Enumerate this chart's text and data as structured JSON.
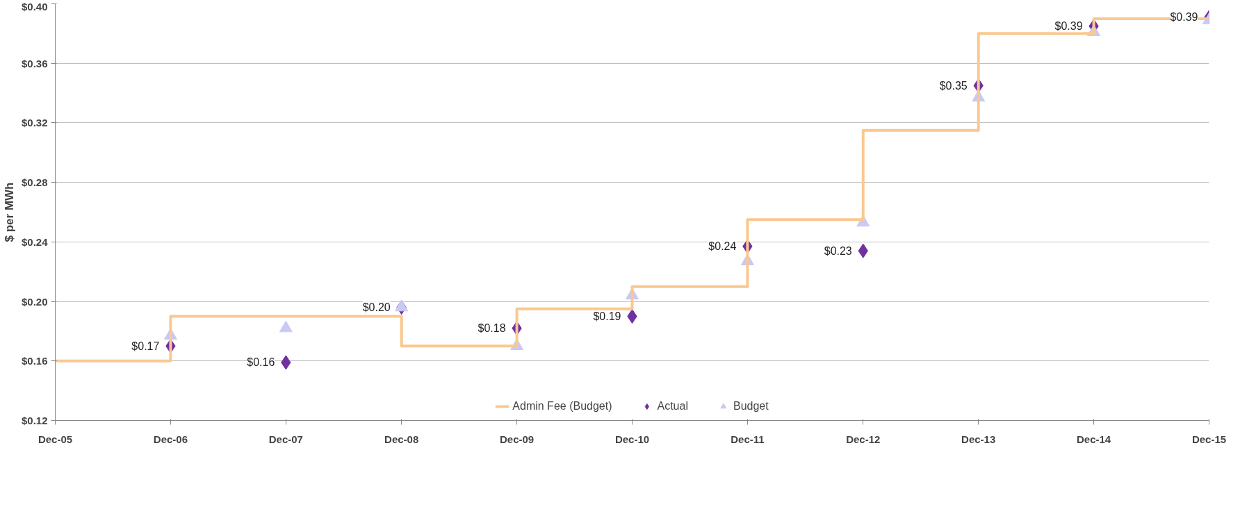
{
  "chart_data": {
    "type": "scatter",
    "ylabel": "$ per MWh",
    "x": [
      "2005-12",
      "2006-12",
      "2007-12",
      "2008-12",
      "2009-12",
      "2010-12",
      "2011-12",
      "2012-12",
      "2013-12",
      "2014-12",
      "2015-12"
    ],
    "series": [
      {
        "name": "Admin Fee (Budget)",
        "type": "step",
        "color": "#fac890",
        "marker": "none",
        "values": [
          0.16,
          0.19,
          0.19,
          0.17,
          0.195,
          0.21,
          0.255,
          0.315,
          0.38,
          0.39,
          0.39
        ]
      },
      {
        "name": "Actual",
        "color": "#7030a0",
        "marker": "diamond",
        "x": [
          "2006-12",
          "2007-12",
          "2008-12",
          "2009-12",
          "2010-12",
          "2011-12",
          "2012-12",
          "2013-12",
          "2014-12",
          "2015-12"
        ],
        "values": [
          0.17,
          0.159,
          0.196,
          0.182,
          0.19,
          0.237,
          0.234,
          0.345,
          0.385,
          0.391
        ],
        "value_labels": [
          "$0.17",
          "$0.16",
          "$0.20",
          "$0.18",
          "$0.19",
          "$0.24",
          "$0.23",
          "$0.35",
          "$0.39",
          "$0.39"
        ]
      },
      {
        "name": "Budget",
        "color": "#c9c9f5",
        "marker": "triangle",
        "x": [
          "2006-12",
          "2007-12",
          "2008-12",
          "2009-12",
          "2010-12",
          "2011-12",
          "2012-12",
          "2013-12",
          "2014-12",
          "2015-12"
        ],
        "values": [
          0.177,
          0.182,
          0.196,
          0.17,
          0.204,
          0.227,
          0.253,
          0.337,
          0.381,
          0.389
        ]
      }
    ],
    "xlim": [
      "2005-12",
      "2015-12"
    ],
    "xticks": [
      {
        "value": "2005-12",
        "label": "Dec-05"
      },
      {
        "value": "2006-12",
        "label": "Dec-06"
      },
      {
        "value": "2007-12",
        "label": "Dec-07"
      },
      {
        "value": "2008-12",
        "label": "Dec-08"
      },
      {
        "value": "2009-12",
        "label": "Dec-09"
      },
      {
        "value": "2010-12",
        "label": "Dec-10"
      },
      {
        "value": "2011-12",
        "label": "Dec-11"
      },
      {
        "value": "2012-12",
        "label": "Dec-12"
      },
      {
        "value": "2013-12",
        "label": "Dec-13"
      },
      {
        "value": "2014-12",
        "label": "Dec-14"
      },
      {
        "value": "2015-12",
        "label": "Dec-15"
      }
    ],
    "ylim": [
      0.12,
      0.4
    ],
    "yticks": [
      {
        "value": 0.12,
        "label": "$0.12"
      },
      {
        "value": 0.16,
        "label": "$0.16"
      },
      {
        "value": 0.2,
        "label": "$0.20"
      },
      {
        "value": 0.24,
        "label": "$0.24"
      },
      {
        "value": 0.28,
        "label": "$0.28"
      },
      {
        "value": 0.32,
        "label": "$0.32"
      },
      {
        "value": 0.36,
        "label": "$0.36"
      },
      {
        "value": 0.4,
        "label": "$0.40"
      }
    ],
    "grid": "y",
    "legend": "bottom"
  }
}
